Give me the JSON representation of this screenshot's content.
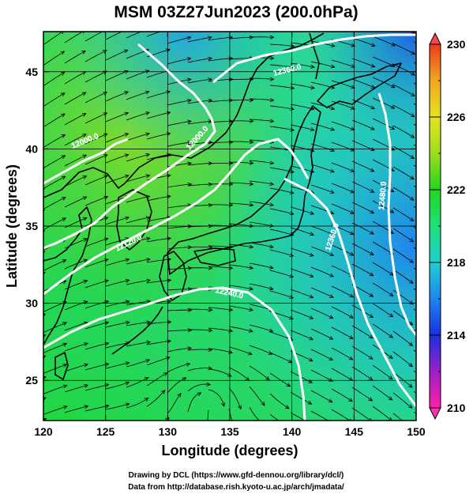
{
  "title": "MSM 03Z27Jun2023 (200.0hPa)",
  "x_axis": {
    "label": "Longitude (degrees)",
    "range": [
      120,
      150
    ],
    "ticks": [
      120,
      125,
      130,
      135,
      140,
      145,
      150
    ],
    "tick_labels": [
      "120",
      "125",
      "130",
      "135",
      "140",
      "145",
      "150"
    ]
  },
  "y_axis": {
    "label": "Latitude  (degrees)",
    "range": [
      22.4,
      47.6
    ],
    "ticks": [
      25,
      30,
      35,
      40,
      45
    ],
    "tick_labels": [
      "25",
      "30",
      "35",
      "40",
      "45"
    ]
  },
  "colorbar": {
    "range": [
      210,
      230
    ],
    "labels": [
      "230",
      "226",
      "222",
      "218",
      "214",
      "210"
    ],
    "label_values": [
      230,
      226,
      222,
      218,
      214,
      210
    ],
    "colors": [
      "#ff1fa8",
      "#9b1fc8",
      "#1b2fe0",
      "#1e86f0",
      "#1fd0d0",
      "#1fe07a",
      "#22d61e",
      "#9fdc1e",
      "#e4e41e",
      "#f0a81e",
      "#f03a1e"
    ]
  },
  "contour_labels": [
    "12000.0",
    "12000.0",
    "12120.0",
    "12360.0",
    "12240.0",
    "12360.0",
    "12480.0"
  ],
  "footer": {
    "line1": "Drawing by DCL (https://www.gfd-dennou.org/library/dcl/)",
    "line2": "Data from http://database.rish.kyoto-u.ac.jp/arch/jmadata/"
  }
}
